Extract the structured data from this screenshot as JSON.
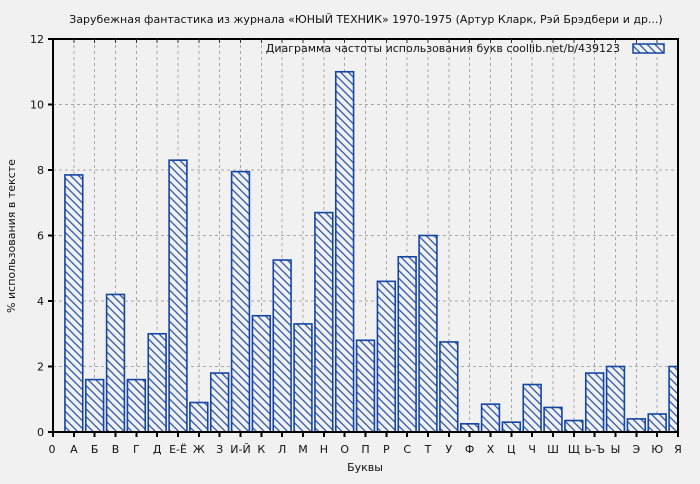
{
  "title": "Зарубежная фантастика из журнала «ЮНЫЙ ТЕХНИК» 1970-1975 (Артур Кларк, Рэй Брэдбери и др...)",
  "legend": {
    "text": "Диаграмма частоты использования букв  coollib.net/b/439123"
  },
  "colors": {
    "bar_edge": "#1444a4",
    "bar_hatch": "#1444a4",
    "bar_fill": "#f1f1f1",
    "grid": "#a8a8a8",
    "frame": "#000000",
    "background": "#f1f1f1",
    "text": "#111111"
  },
  "chart_data": {
    "type": "bar",
    "title": "Зарубежная фантастика из журнала «ЮНЫЙ ТЕХНИК» 1970-1975 (Артур Кларк, Рэй Брэдбери и др...)",
    "categories": [
      "А",
      "Б",
      "В",
      "Г",
      "Д",
      "Е-Ё",
      "Ж",
      "З",
      "И-Й",
      "К",
      "Л",
      "М",
      "Н",
      "О",
      "П",
      "Р",
      "С",
      "Т",
      "У",
      "Ф",
      "Х",
      "Ц",
      "Ч",
      "Ш",
      "Щ",
      "Ь-Ъ",
      "Ы",
      "Э",
      "Ю",
      "Я"
    ],
    "values": [
      7.85,
      1.6,
      4.2,
      1.6,
      3.0,
      8.3,
      0.9,
      1.8,
      7.95,
      3.55,
      5.25,
      3.3,
      6.7,
      11.0,
      2.8,
      4.6,
      5.35,
      6.0,
      2.75,
      0.25,
      0.85,
      0.3,
      1.45,
      0.75,
      0.35,
      1.8,
      2.0,
      0.4,
      0.55,
      2.0
    ],
    "xlabel": "Буквы",
    "ylabel": "% использования в тексте",
    "ylim": [
      0,
      12
    ],
    "ytick_step": 2,
    "origin_tick_label": "0",
    "grid": true,
    "legend_entry": "Диаграмма частоты использования букв  coollib.net/b/439123",
    "legend_position": "top-right",
    "bar_style": "blue-diagonal-hatch"
  }
}
